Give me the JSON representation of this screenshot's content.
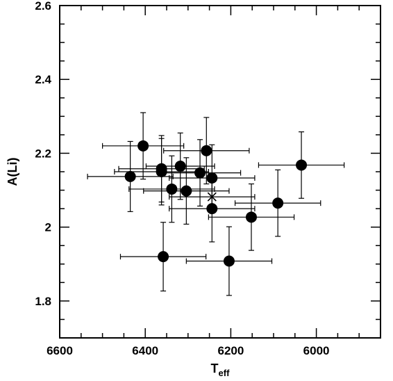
{
  "chart_data": {
    "type": "scatter",
    "title": "",
    "xlabel": "T",
    "xlabel_sub": "eff",
    "ylabel": "A(Li)",
    "xlim": [
      6600,
      5850
    ],
    "ylim": [
      1.7,
      2.6
    ],
    "x_inverted": true,
    "xticks": [
      6600,
      6400,
      6200,
      6000
    ],
    "xtick_labels": [
      "6600",
      "6400",
      "6200",
      "6000"
    ],
    "yticks": [
      1.8,
      2.0,
      2.2,
      2.4,
      2.6
    ],
    "ytick_labels": [
      "1.8",
      "2",
      "2.2",
      "2.4",
      "2.6"
    ],
    "grid": false,
    "legend": "none",
    "marker_color": "#000000",
    "points": [
      {
        "teff": 6405,
        "ali": 2.22,
        "teff_err": 95,
        "ali_err": 0.09
      },
      {
        "teff": 6435,
        "ali": 2.137,
        "teff_err": 100,
        "ali_err": 0.095
      },
      {
        "teff": 6362,
        "ali": 2.158,
        "teff_err": 100,
        "ali_err": 0.09
      },
      {
        "teff": 6362,
        "ali": 2.15,
        "teff_err": 110,
        "ali_err": 0.09
      },
      {
        "teff": 6318,
        "ali": 2.165,
        "teff_err": 80,
        "ali_err": 0.09
      },
      {
        "teff": 6338,
        "ali": 2.103,
        "teff_err": 100,
        "ali_err": 0.09
      },
      {
        "teff": 6304,
        "ali": 2.098,
        "teff_err": 100,
        "ali_err": 0.09
      },
      {
        "teff": 6272,
        "ali": 2.147,
        "teff_err": 95,
        "ali_err": 0.09
      },
      {
        "teff": 6257,
        "ali": 2.207,
        "teff_err": 100,
        "ali_err": 0.09
      },
      {
        "teff": 6244,
        "ali": 2.133,
        "teff_err": 100,
        "ali_err": 0.09
      },
      {
        "teff": 6244,
        "ali": 2.05,
        "teff_err": 100,
        "ali_err": 0.09
      },
      {
        "teff": 6358,
        "ali": 1.92,
        "teff_err": 100,
        "ali_err": 0.093
      },
      {
        "teff": 6204,
        "ali": 1.908,
        "teff_err": 100,
        "ali_err": 0.093
      },
      {
        "teff": 6152,
        "ali": 2.027,
        "teff_err": 100,
        "ali_err": 0.09
      },
      {
        "teff": 6090,
        "ali": 2.065,
        "teff_err": 100,
        "ali_err": 0.09
      },
      {
        "teff": 6035,
        "ali": 2.168,
        "teff_err": 100,
        "ali_err": 0.09
      }
    ],
    "special_point": {
      "marker": "cross",
      "teff": 6244,
      "ali": 2.082,
      "teff_err": 100,
      "ali_err": 0.0
    }
  }
}
